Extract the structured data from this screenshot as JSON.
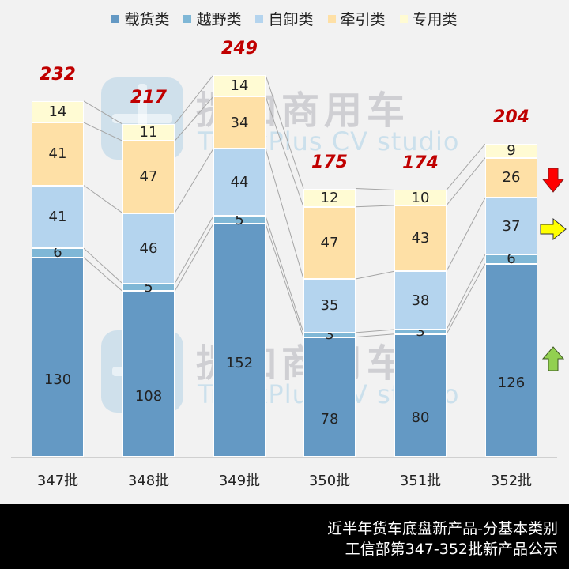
{
  "legend": [
    {
      "label": "载货类",
      "color": "#6499c4"
    },
    {
      "label": "越野类",
      "color": "#7fb7d6"
    },
    {
      "label": "自卸类",
      "color": "#b4d4ee"
    },
    {
      "label": "牵引类",
      "color": "#fee0a6"
    },
    {
      "label": "专用类",
      "color": "#fffbd3"
    }
  ],
  "watermark": {
    "cn": "提加商用车",
    "en": "TruckPlus CV studio"
  },
  "footer": {
    "line1": "近半年货车底盘新产品-分基本类别",
    "line2": "工信部第347-352批新产品公示"
  },
  "arrows": [
    {
      "name": "down-arrow",
      "color": "#ff0000",
      "meaning": "牵引类 decrease"
    },
    {
      "name": "right-arrow",
      "color": "#ffff00",
      "meaning": "自卸类 flat"
    },
    {
      "name": "up-arrow",
      "color": "#92d050",
      "meaning": "载货类 increase"
    }
  ],
  "chart_data": {
    "type": "bar",
    "stacked": true,
    "title": "近半年货车底盘新产品-分基本类别",
    "subtitle": "工信部第347-352批新产品公示",
    "xlabel": "",
    "ylabel": "",
    "categories": [
      "347批",
      "348批",
      "349批",
      "350批",
      "351批",
      "352批"
    ],
    "series": [
      {
        "name": "载货类",
        "color": "#6499c4",
        "values": [
          130,
          108,
          152,
          78,
          80,
          126
        ]
      },
      {
        "name": "越野类",
        "color": "#7fb7d6",
        "values": [
          6,
          5,
          5,
          3,
          3,
          6
        ]
      },
      {
        "name": "自卸类",
        "color": "#b4d4ee",
        "values": [
          41,
          46,
          44,
          35,
          38,
          37
        ]
      },
      {
        "name": "牵引类",
        "color": "#fee0a6",
        "values": [
          41,
          47,
          34,
          47,
          43,
          26
        ]
      },
      {
        "name": "专用类",
        "color": "#fffbd3",
        "values": [
          14,
          11,
          14,
          12,
          10,
          9
        ]
      }
    ],
    "totals": [
      232,
      217,
      249,
      175,
      174,
      204
    ],
    "legend_position": "top",
    "grid": false,
    "series_lines": true
  }
}
